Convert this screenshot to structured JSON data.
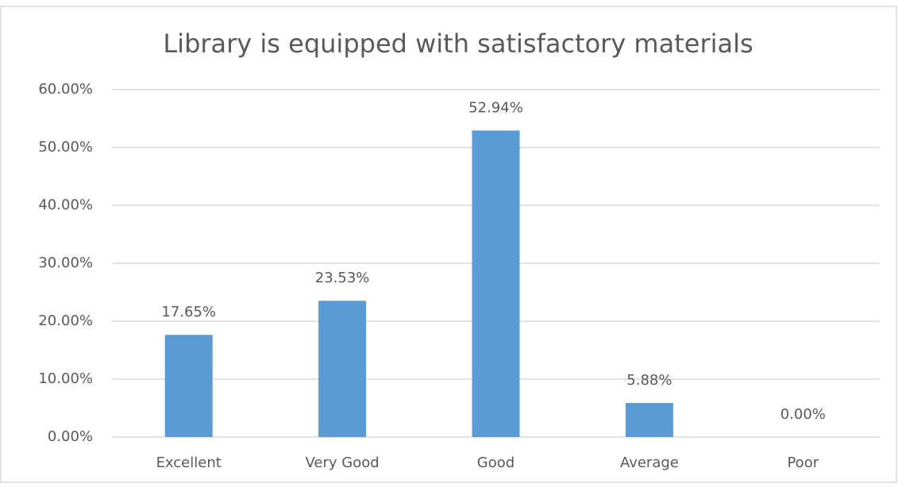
{
  "chart_data": {
    "type": "bar",
    "title": "Library is equipped with satisfactory materials",
    "categories": [
      "Excellent",
      "Very Good",
      "Good",
      "Average",
      "Poor"
    ],
    "values": [
      17.65,
      23.53,
      52.94,
      5.88,
      0
    ],
    "value_labels": [
      "17.65%",
      "23.53%",
      "52.94%",
      "5.88%",
      "0.00%"
    ],
    "color": "#5b9bd5",
    "ylim": [
      0,
      60
    ],
    "yticks": [
      {
        "value": 0,
        "label": "0.00%"
      },
      {
        "value": 10,
        "label": "10.00%"
      },
      {
        "value": 20,
        "label": "20.00%"
      },
      {
        "value": 30,
        "label": "30.00%"
      },
      {
        "value": 40,
        "label": "40.00%"
      },
      {
        "value": 50,
        "label": "50.00%"
      },
      {
        "value": 60,
        "label": "60.00%"
      }
    ],
    "grid": true
  }
}
